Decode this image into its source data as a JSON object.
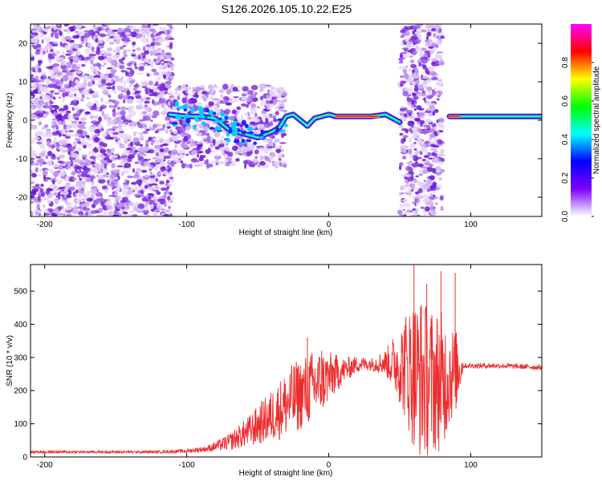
{
  "title": "S126.2026.105.10.22.E25",
  "chart_data": [
    {
      "type": "heatmap",
      "title": "S126.2026.105.10.22.E25",
      "xlabel": "Height of straight line (km)",
      "ylabel": "Frequency (Hz)",
      "xlim": [
        -210,
        150
      ],
      "ylim": [
        -25,
        25
      ],
      "xticks": [
        -200,
        -100,
        0,
        100
      ],
      "yticks": [
        -20,
        -10,
        0,
        10,
        20
      ],
      "colorbar": {
        "label": "Normalized spectral amplitude",
        "range": [
          0.0,
          1.0
        ],
        "ticks": [
          0.0,
          0.2,
          0.4,
          0.6,
          0.8
        ],
        "tick_labels": [
          "0.0",
          "0.2",
          "0.4",
          "0.6",
          "0.8"
        ],
        "colormap": [
          "#ffffff",
          "#7f00ff",
          "#0000ff",
          "#00ffff",
          "#00ff00",
          "#ffff00",
          "#ff0000",
          "#ff00ff"
        ]
      },
      "ridge_line": {
        "x": [
          -112,
          -100,
          -90,
          -80,
          -70,
          -60,
          -50,
          -40,
          -35,
          -30,
          -25,
          -20,
          -15,
          -10,
          -5,
          0,
          5,
          10,
          20,
          30,
          40,
          45,
          50,
          85,
          100,
          120,
          150
        ],
        "y": [
          1.5,
          1.0,
          1.0,
          0.5,
          -2.5,
          -3.5,
          -4.5,
          -3.0,
          -2.0,
          1.0,
          1.5,
          0.0,
          -1.5,
          0.5,
          1.0,
          1.5,
          1.0,
          1.0,
          1.0,
          1.0,
          1.5,
          0.5,
          -0.5,
          1.0,
          1.0,
          1.0,
          1.0
        ],
        "high_amplitude_segments": [
          [
            5,
            35
          ],
          [
            85,
            92
          ]
        ]
      },
      "noise_regions": [
        {
          "x_range": [
            -210,
            -110
          ],
          "y_range": [
            -25,
            25
          ]
        },
        {
          "x_range": [
            -110,
            -30
          ],
          "y_range": [
            -12,
            9
          ]
        },
        {
          "x_range": [
            50,
            80
          ],
          "y_range": [
            -25,
            25
          ]
        }
      ]
    },
    {
      "type": "line",
      "xlabel": "Height of straight line (km)",
      "ylabel": "SNR (10 * v/v)",
      "xlim": [
        -210,
        150
      ],
      "ylim": [
        0,
        580
      ],
      "xticks": [
        -200,
        -100,
        0,
        100
      ],
      "yticks": [
        0,
        100,
        200,
        300,
        400,
        500
      ],
      "series": [
        {
          "name": "SNR",
          "color": "#ee2b2b",
          "x": [
            -210,
            -150,
            -120,
            -100,
            -85,
            -70,
            -55,
            -40,
            -25,
            -10,
            0,
            10,
            20,
            30,
            40,
            50,
            55,
            60,
            65,
            70,
            75,
            80,
            85,
            90,
            95,
            100,
            120,
            150
          ],
          "mean": [
            15,
            15,
            15,
            18,
            25,
            45,
            80,
            125,
            175,
            215,
            240,
            260,
            280,
            280,
            285,
            280,
            270,
            250,
            240,
            230,
            230,
            230,
            250,
            260,
            275,
            275,
            275,
            270
          ],
          "amplitude": [
            4,
            4,
            4,
            6,
            10,
            25,
            50,
            80,
            110,
            110,
            80,
            40,
            25,
            20,
            40,
            120,
            180,
            230,
            250,
            230,
            220,
            210,
            160,
            120,
            8,
            8,
            8,
            8
          ],
          "spikes": [
            {
              "x": 60,
              "y": 580
            },
            {
              "x": 79,
              "y": 560
            },
            {
              "x": 89,
              "y": 555
            },
            {
              "x": -15,
              "y": 360
            },
            {
              "x": -5,
              "y": 320
            },
            {
              "x": 69,
              "y": 522
            }
          ]
        }
      ]
    }
  ]
}
